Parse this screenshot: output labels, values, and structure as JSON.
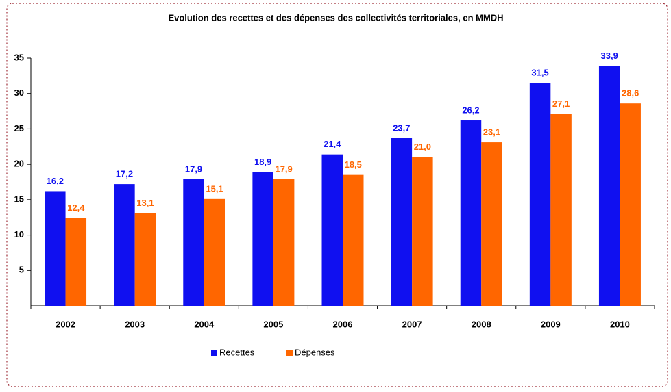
{
  "chart_data": {
    "type": "bar",
    "title": "Evolution des recettes et des dépenses des collectivités territoriales, en MMDH",
    "categories": [
      "2002",
      "2003",
      "2004",
      "2005",
      "2006",
      "2007",
      "2008",
      "2009",
      "2010"
    ],
    "series": [
      {
        "name": "Recettes",
        "color": "#1010f0",
        "values": [
          16.2,
          17.2,
          17.9,
          18.9,
          21.4,
          23.7,
          26.2,
          31.5,
          33.9
        ],
        "value_labels": [
          "16,2",
          "17,2",
          "17,9",
          "18,9",
          "21,4",
          "23,7",
          "26,2",
          "31,5",
          "33,9"
        ]
      },
      {
        "name": "Dépenses",
        "color": "#ff6600",
        "values": [
          12.4,
          13.1,
          15.1,
          17.9,
          18.5,
          21.0,
          23.1,
          27.1,
          28.6
        ],
        "value_labels": [
          "12,4",
          "13,1",
          "15,1",
          "17,9",
          "18,5",
          "21,0",
          "23,1",
          "27,1",
          "28,6"
        ]
      }
    ],
    "ylim": [
      0,
      35
    ],
    "yticks": [
      5,
      10,
      15,
      20,
      25,
      30,
      35
    ],
    "grid": false,
    "legend": "bottom"
  }
}
